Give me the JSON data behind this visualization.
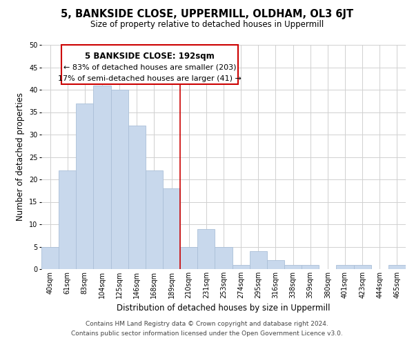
{
  "title": "5, BANKSIDE CLOSE, UPPERMILL, OLDHAM, OL3 6JT",
  "subtitle": "Size of property relative to detached houses in Uppermill",
  "xlabel": "Distribution of detached houses by size in Uppermill",
  "ylabel": "Number of detached properties",
  "bar_labels": [
    "40sqm",
    "61sqm",
    "83sqm",
    "104sqm",
    "125sqm",
    "146sqm",
    "168sqm",
    "189sqm",
    "210sqm",
    "231sqm",
    "253sqm",
    "274sqm",
    "295sqm",
    "316sqm",
    "338sqm",
    "359sqm",
    "380sqm",
    "401sqm",
    "423sqm",
    "444sqm",
    "465sqm"
  ],
  "bar_values": [
    5,
    22,
    37,
    41,
    40,
    32,
    22,
    18,
    5,
    9,
    5,
    1,
    4,
    2,
    1,
    1,
    0,
    1,
    1,
    0,
    1
  ],
  "bar_color": "#c8d8ec",
  "bar_edge_color": "#aabfd8",
  "red_line_index": 7,
  "red_line_color": "#cc0000",
  "annotation_title": "5 BANKSIDE CLOSE: 192sqm",
  "annotation_line1": "← 83% of detached houses are smaller (203)",
  "annotation_line2": "17% of semi-detached houses are larger (41) →",
  "annotation_box_edge": "#cc0000",
  "ylim": [
    0,
    50
  ],
  "yticks": [
    0,
    5,
    10,
    15,
    20,
    25,
    30,
    35,
    40,
    45,
    50
  ],
  "footer_line1": "Contains HM Land Registry data © Crown copyright and database right 2024.",
  "footer_line2": "Contains public sector information licensed under the Open Government Licence v3.0.",
  "title_fontsize": 10.5,
  "subtitle_fontsize": 8.5,
  "axis_label_fontsize": 8.5,
  "tick_fontsize": 7,
  "footer_fontsize": 6.5,
  "annotation_title_fontsize": 8.5,
  "annotation_text_fontsize": 8
}
